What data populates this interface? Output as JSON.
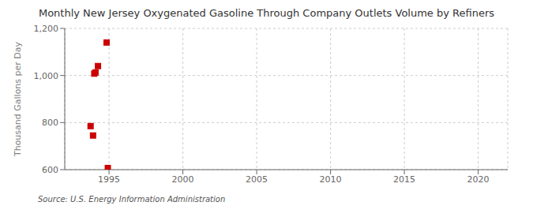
{
  "chart_data": {
    "type": "scatter",
    "title": "Monthly New Jersey Oxygenated Gasoline Through Company Outlets Volume by Refiners",
    "y_label": "Thousand Gallons per Day",
    "annotations": [
      "Source: U.S. Energy Information Administration"
    ],
    "x": [
      1993.75,
      1993.917,
      1994.0,
      1994.083,
      1994.25,
      1994.833,
      1994.917
    ],
    "values": [
      785,
      745,
      1008,
      1013,
      1040,
      1140,
      607
    ],
    "color": "#cc0000",
    "marker": "square",
    "xlim": [
      1992,
      2022
    ],
    "xticks": [
      1995,
      2000,
      2005,
      2010,
      2015,
      2020
    ],
    "ylim": [
      600,
      1200
    ],
    "yticks": [
      600,
      800,
      {
        "value": 1000,
        "label": "1,000"
      },
      {
        "value": 1200,
        "label": "1,200"
      }
    ],
    "grid": true
  }
}
